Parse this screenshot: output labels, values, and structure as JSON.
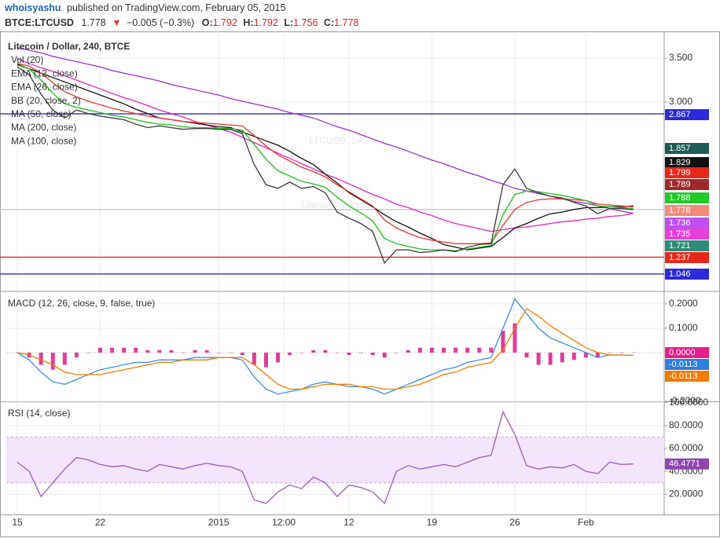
{
  "header": {
    "author": "whoisyashu",
    "published": "published on TradingView.com, February 05, 2015",
    "symbol": "BTCE:LTCUSD",
    "last": "1.778",
    "arrow": "▼",
    "change": "−0.005 (−0.3%)",
    "ohlc": [
      {
        "key": "O:",
        "value": "1.792"
      },
      {
        "key": "H:",
        "value": "1.792"
      },
      {
        "key": "L:",
        "value": "1.756"
      },
      {
        "key": "C:",
        "value": "1.778"
      }
    ]
  },
  "chart_data": [
    {
      "type": "line",
      "title": "Litecoin / Dollar, 240, BTCE",
      "watermark": "LTCUSD, 240",
      "watermark_sub": "Litecoin / Dollar",
      "indicators": [
        "Vol (20)",
        "EMA (12, close)",
        "EMA (26, close)",
        "BB (20, close, 2)",
        "MA (50, close)",
        "MA (200, close)",
        "MA (100, close)"
      ],
      "xlim": [
        -0.93,
        54.61
      ],
      "xticks": [
        {
          "value": 0,
          "label": "15"
        },
        {
          "value": 7,
          "label": "22"
        },
        {
          "value": 17,
          "label": "2015"
        },
        {
          "value": 22.5,
          "label": "12:00"
        },
        {
          "value": 28,
          "label": "12"
        },
        {
          "value": 35,
          "label": "19"
        },
        {
          "value": 42,
          "label": "26"
        },
        {
          "value": 48,
          "label": "Feb"
        }
      ],
      "ylim": [
        0.857,
        3.768
      ],
      "yticks": [
        {
          "value": 3.5,
          "label": "3.500"
        },
        {
          "value": 3,
          "label": "3.000"
        }
      ],
      "grid": true,
      "series": [
        {
          "color": "#9932cc",
          "values": [
            3.62,
            3.59,
            3.56,
            3.52,
            3.49,
            3.46,
            3.43,
            3.4,
            3.36,
            3.33,
            3.3,
            3.27,
            3.24,
            3.2,
            3.17,
            3.14,
            3.11,
            3.08,
            3.04,
            3.01,
            2.98,
            2.95,
            2.92,
            2.88,
            2.85,
            2.82,
            2.77,
            2.72,
            2.68,
            2.63,
            2.58,
            2.53,
            2.49,
            2.44,
            2.39,
            2.34,
            2.3,
            2.25,
            2.2,
            2.16,
            2.11,
            2.07,
            2.02,
            1.99,
            1.96,
            1.93,
            1.9,
            1.87,
            1.85,
            1.82,
            1.79,
            1.76,
            1.736
          ]
        },
        {
          "color": "#e626c2",
          "values": [
            3.49,
            3.44,
            3.39,
            3.35,
            3.3,
            3.25,
            3.2,
            3.15,
            3.1,
            3.05,
            3.01,
            2.96,
            2.91,
            2.87,
            2.83,
            2.78,
            2.74,
            2.7,
            2.66,
            2.6,
            2.54,
            2.48,
            2.42,
            2.36,
            2.3,
            2.24,
            2.18,
            2.13,
            2.07,
            2.01,
            1.95,
            1.9,
            1.84,
            1.8,
            1.75,
            1.71,
            1.66,
            1.62,
            1.59,
            1.56,
            1.53,
            1.55,
            1.57,
            1.58,
            1.6,
            1.62,
            1.64,
            1.65,
            1.67,
            1.68,
            1.7,
            1.71,
            1.735
          ]
        },
        {
          "color": "#111111",
          "values": [
            3.43,
            3.38,
            3.33,
            3.28,
            3.23,
            3.18,
            3.13,
            3.08,
            3.03,
            2.98,
            2.92,
            2.87,
            2.82,
            2.8,
            2.78,
            2.76,
            2.74,
            2.72,
            2.71,
            2.66,
            2.61,
            2.56,
            2.51,
            2.44,
            2.36,
            2.29,
            2.18,
            2.08,
            1.97,
            1.89,
            1.81,
            1.72,
            1.64,
            1.58,
            1.51,
            1.45,
            1.38,
            1.35,
            1.32,
            1.34,
            1.36,
            1.46,
            1.57,
            1.62,
            1.68,
            1.73,
            1.75,
            1.78,
            1.8,
            1.8,
            1.81,
            1.81,
            1.82
          ]
        },
        {
          "color": "#e53935",
          "values": [
            3.44,
            3.41,
            3.33,
            3.22,
            3.12,
            3.06,
            3.01,
            2.97,
            2.93,
            2.9,
            2.87,
            2.84,
            2.82,
            2.8,
            2.78,
            2.77,
            2.76,
            2.75,
            2.74,
            2.73,
            2.62,
            2.5,
            2.4,
            2.33,
            2.26,
            2.21,
            2.15,
            2.06,
            1.98,
            1.9,
            1.82,
            1.66,
            1.57,
            1.51,
            1.46,
            1.43,
            1.41,
            1.39,
            1.39,
            1.39,
            1.4,
            1.6,
            1.78,
            1.86,
            1.89,
            1.9,
            1.9,
            1.89,
            1.88,
            1.84,
            1.83,
            1.82,
            1.81
          ]
        },
        {
          "color": "#20c020",
          "values": [
            3.42,
            3.38,
            3.25,
            3.1,
            2.98,
            2.94,
            2.91,
            2.88,
            2.85,
            2.83,
            2.8,
            2.77,
            2.75,
            2.74,
            2.72,
            2.71,
            2.71,
            2.7,
            2.7,
            2.68,
            2.52,
            2.35,
            2.22,
            2.16,
            2.1,
            2.07,
            2.03,
            1.92,
            1.82,
            1.74,
            1.65,
            1.45,
            1.39,
            1.36,
            1.33,
            1.32,
            1.32,
            1.31,
            1.33,
            1.35,
            1.37,
            1.72,
            1.95,
            1.99,
            1.98,
            1.96,
            1.94,
            1.91,
            1.88,
            1.82,
            1.81,
            1.8,
            1.79
          ]
        },
        {
          "color": "#3a3a3a",
          "values": [
            3.4,
            3.31,
            3.09,
            2.91,
            2.82,
            2.91,
            2.87,
            2.84,
            2.82,
            2.8,
            2.75,
            2.71,
            2.73,
            2.71,
            2.69,
            2.7,
            2.7,
            2.69,
            2.69,
            2.64,
            2.29,
            2.06,
            2.02,
            2.09,
            2.02,
            2.04,
            1.97,
            1.75,
            1.68,
            1.62,
            1.53,
            1.17,
            1.32,
            1.32,
            1.29,
            1.3,
            1.32,
            1.3,
            1.35,
            1.38,
            1.39,
            2.06,
            2.24,
            2.02,
            1.97,
            1.93,
            1.91,
            1.86,
            1.82,
            1.73,
            1.79,
            1.79,
            1.778
          ]
        }
      ],
      "levels": [
        {
          "value": 2.867,
          "color": "#2b2bd9"
        },
        {
          "value": 1.778,
          "color": "#c8c8c8"
        },
        {
          "value": 1.237,
          "color": "#e8271b"
        },
        {
          "value": 1.046,
          "color": "#2b2bd9"
        }
      ],
      "badges": [
        {
          "value": 2.867,
          "color": "#2b2bd9"
        },
        {
          "value": 1.857,
          "color": "#1f5c55"
        },
        {
          "value": 1.829,
          "color": "#111111"
        },
        {
          "value": 1.799,
          "color": "#e8271b"
        },
        {
          "value": 1.789,
          "color": "#9e2b2b"
        },
        {
          "value": 1.788,
          "color": "#22c92a"
        },
        {
          "value": 1.778,
          "color": "#f38a7a"
        },
        {
          "value": 1.736,
          "color": "#c04ff0"
        },
        {
          "value": 1.735,
          "color": "#e83fd8"
        },
        {
          "value": 1.721,
          "color": "#2e8b78"
        },
        {
          "value": 1.237,
          "color": "#e8271b"
        },
        {
          "value": 1.046,
          "color": "#2b2bd9"
        }
      ]
    },
    {
      "type": "macd",
      "title": "MACD (12, 26, close, 9, false, true)",
      "ylim": [
        -0.2,
        0.248
      ],
      "yticks": [
        {
          "value": 0.2,
          "label": "0.2000"
        },
        {
          "value": 0.1,
          "label": "0.1000"
        },
        {
          "value": -0.2,
          "label": "-0.2000"
        }
      ],
      "series": [
        {
          "style": "histogram",
          "color": "#d81b8a",
          "values": [
            0.0,
            -0.02,
            -0.05,
            -0.07,
            -0.05,
            -0.02,
            0.0,
            0.02,
            0.02,
            0.02,
            0.02,
            0.01,
            0.01,
            0.01,
            0.0,
            0.01,
            0.01,
            0.0,
            0.0,
            -0.01,
            -0.05,
            -0.06,
            -0.04,
            -0.01,
            0.0,
            0.01,
            0.01,
            0.0,
            -0.01,
            0.0,
            -0.01,
            -0.02,
            0.0,
            0.01,
            0.02,
            0.02,
            0.02,
            0.02,
            0.02,
            0.02,
            0.02,
            0.09,
            0.12,
            -0.02,
            -0.05,
            -0.05,
            -0.04,
            -0.03,
            -0.02,
            -0.02,
            0.0,
            0.0,
            0.0
          ]
        },
        {
          "color": "#3d8fe0",
          "values": [
            0.0,
            -0.03,
            -0.08,
            -0.12,
            -0.13,
            -0.11,
            -0.09,
            -0.07,
            -0.06,
            -0.05,
            -0.04,
            -0.04,
            -0.03,
            -0.03,
            -0.03,
            -0.02,
            -0.02,
            -0.02,
            -0.02,
            -0.03,
            -0.1,
            -0.15,
            -0.17,
            -0.16,
            -0.15,
            -0.13,
            -0.12,
            -0.13,
            -0.14,
            -0.14,
            -0.15,
            -0.17,
            -0.15,
            -0.13,
            -0.11,
            -0.09,
            -0.07,
            -0.06,
            -0.04,
            -0.03,
            -0.02,
            0.1,
            0.22,
            0.16,
            0.1,
            0.06,
            0.04,
            0.02,
            0.0,
            -0.02,
            -0.01,
            -0.01,
            -0.0113
          ]
        },
        {
          "color": "#f57c00",
          "values": [
            0.0,
            -0.01,
            -0.03,
            -0.05,
            -0.08,
            -0.09,
            -0.09,
            -0.09,
            -0.08,
            -0.07,
            -0.06,
            -0.05,
            -0.04,
            -0.04,
            -0.03,
            -0.03,
            -0.03,
            -0.02,
            -0.02,
            -0.02,
            -0.05,
            -0.09,
            -0.13,
            -0.15,
            -0.15,
            -0.14,
            -0.13,
            -0.13,
            -0.13,
            -0.14,
            -0.14,
            -0.15,
            -0.15,
            -0.14,
            -0.13,
            -0.11,
            -0.09,
            -0.08,
            -0.06,
            -0.05,
            -0.04,
            0.01,
            0.1,
            0.18,
            0.15,
            0.11,
            0.08,
            0.05,
            0.02,
            0.0,
            -0.01,
            -0.01,
            -0.0113
          ]
        }
      ],
      "badges": [
        {
          "value": 0,
          "label": "0.0000",
          "color": "#e91e8c"
        },
        {
          "value": -0.0113,
          "color": "#2d7fe0"
        },
        {
          "value": -0.0113,
          "color": "#f57c00"
        }
      ]
    },
    {
      "type": "line",
      "title": "RSI (14, close)",
      "ylim": [
        2.4,
        100.4
      ],
      "yticks": [
        {
          "value": 100,
          "label": "100.0000"
        },
        {
          "value": 80,
          "label": "80.0000"
        },
        {
          "value": 60,
          "label": "60.0000"
        },
        {
          "value": 40,
          "label": "40.0000"
        },
        {
          "value": 20,
          "label": "20.0000"
        }
      ],
      "band": [
        30,
        70
      ],
      "band_color": "#f3e4fb",
      "series": [
        {
          "color": "#a05cc0",
          "values": [
            48,
            40,
            18,
            30,
            42,
            52,
            50,
            46,
            44,
            45,
            42,
            40,
            46,
            44,
            42,
            45,
            47,
            45,
            44,
            40,
            15,
            12,
            22,
            28,
            25,
            35,
            30,
            18,
            28,
            26,
            22,
            12,
            40,
            45,
            42,
            44,
            46,
            44,
            48,
            52,
            54,
            92,
            72,
            45,
            42,
            44,
            43,
            46,
            40,
            38,
            48,
            46,
            46.4771
          ]
        }
      ],
      "badges": [
        {
          "value": 46.4771,
          "color": "#8e44ad"
        }
      ]
    }
  ]
}
